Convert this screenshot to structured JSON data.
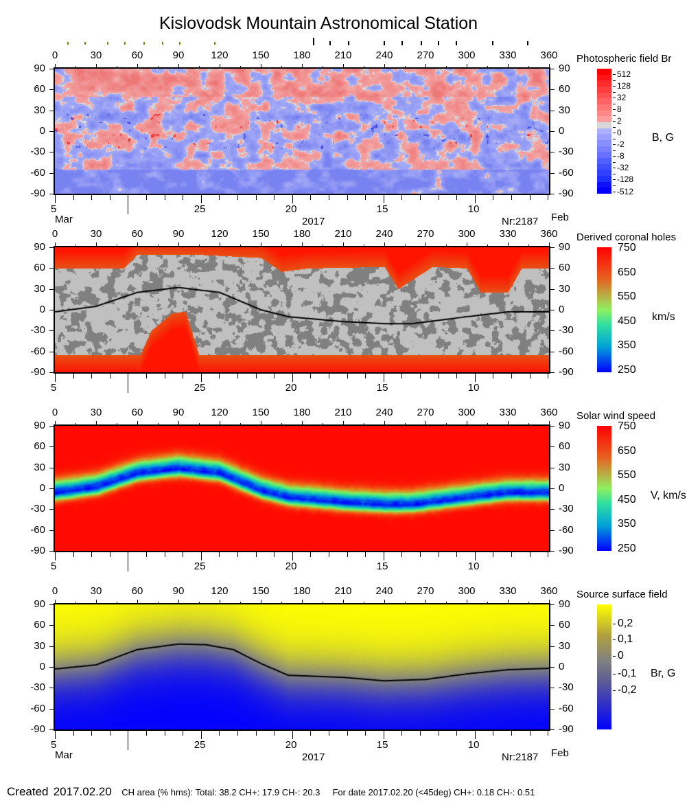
{
  "title": "Kislovodsk Mountain Astronomical Station",
  "markers": {
    "olive_longitudes": [
      9.5,
      22,
      38.5,
      51,
      65,
      78.5,
      91,
      116.5
    ],
    "black_longitudes": [
      188.5,
      200.5,
      214,
      240,
      253,
      267,
      279.5,
      292.5,
      319,
      344.5
    ],
    "olive_color": "#808000",
    "black_color": "#000000"
  },
  "axes": {
    "lon_ticks": [
      "0",
      "30",
      "60",
      "90",
      "120",
      "150",
      "180",
      "210",
      "240",
      "270",
      "300",
      "330",
      "360"
    ],
    "lat_ticks": [
      "90",
      "60",
      "30",
      "0",
      "-30",
      "-60",
      "-90"
    ],
    "date_ticks": [
      {
        "label": "5",
        "days_from_left": 0
      },
      {
        "label": "25",
        "days_from_left": 8
      },
      {
        "label": "20",
        "days_from_left": 13
      },
      {
        "label": "15",
        "days_from_left": 18
      },
      {
        "label": "10",
        "days_from_left": 23
      }
    ],
    "month_left": "Mar",
    "month_right": "Feb",
    "year": "2017",
    "rotation": "Nr:2187",
    "xlim": [
      0,
      360
    ],
    "ylim": [
      -90,
      90
    ]
  },
  "chart_data": [
    {
      "type": "heatmap",
      "title": "Photospheric field Br",
      "unit": "B, G",
      "colorbar_ticks": [
        "512",
        "128",
        "32",
        "8",
        "2",
        "0",
        "-2",
        "-8",
        "-32",
        "-128",
        "-512"
      ],
      "colors": {
        "positive": "#ff0000",
        "weak_positive": "#f4a3a3",
        "zero": "#d8d8d8",
        "weak_negative": "#a8b0f8",
        "negative": "#0000ff"
      }
    },
    {
      "type": "heatmap",
      "title": "Derived coronal holes",
      "unit": "km/s",
      "colorbar_ticks": [
        "750",
        "650",
        "550",
        "450",
        "350",
        "250"
      ],
      "neutral_line": {
        "lon": [
          0,
          30,
          60,
          90,
          120,
          150,
          170,
          210,
          240,
          260,
          300,
          330,
          360
        ],
        "lat": [
          -3,
          5,
          25,
          32,
          25,
          0,
          -10,
          -17,
          -20,
          -20,
          -10,
          -3,
          -3
        ]
      },
      "colors": {
        "closed_field_light": "#c0c0c0",
        "closed_field_dark": "#808080",
        "high": "#ff0000",
        "low": "#0000ff"
      }
    },
    {
      "type": "heatmap",
      "title": "Solar wind speed",
      "unit": "V, km/s",
      "colorbar_ticks": [
        "750",
        "650",
        "550",
        "450",
        "350",
        "250"
      ],
      "clim": [
        250,
        750
      ]
    },
    {
      "type": "heatmap",
      "title": "Source surface field",
      "unit": "Br, G",
      "colorbar_ticks": [
        "0,2",
        "0,1",
        "0",
        "-0,1",
        "-0,2"
      ],
      "neutral_line": {
        "lon": [
          0,
          30,
          60,
          90,
          110,
          130,
          150,
          170,
          210,
          240,
          270,
          300,
          330,
          360
        ],
        "lat": [
          -3,
          3,
          25,
          33,
          32,
          25,
          5,
          -12,
          -15,
          -20,
          -18,
          -10,
          -4,
          -2
        ]
      },
      "colors": {
        "positive": "#ffff00",
        "zero": "#808080",
        "negative": "#0000ff"
      }
    }
  ],
  "footer": {
    "created_label": "Created",
    "created_date": "2017.02.20",
    "ch_area": "CH area (% hms): Total: 38.2 CH+: 17.9   CH-: 20.3",
    "for_date": "For date 2017.02.20 (<45deg) CH+: 0.18    CH-: 0.51"
  }
}
